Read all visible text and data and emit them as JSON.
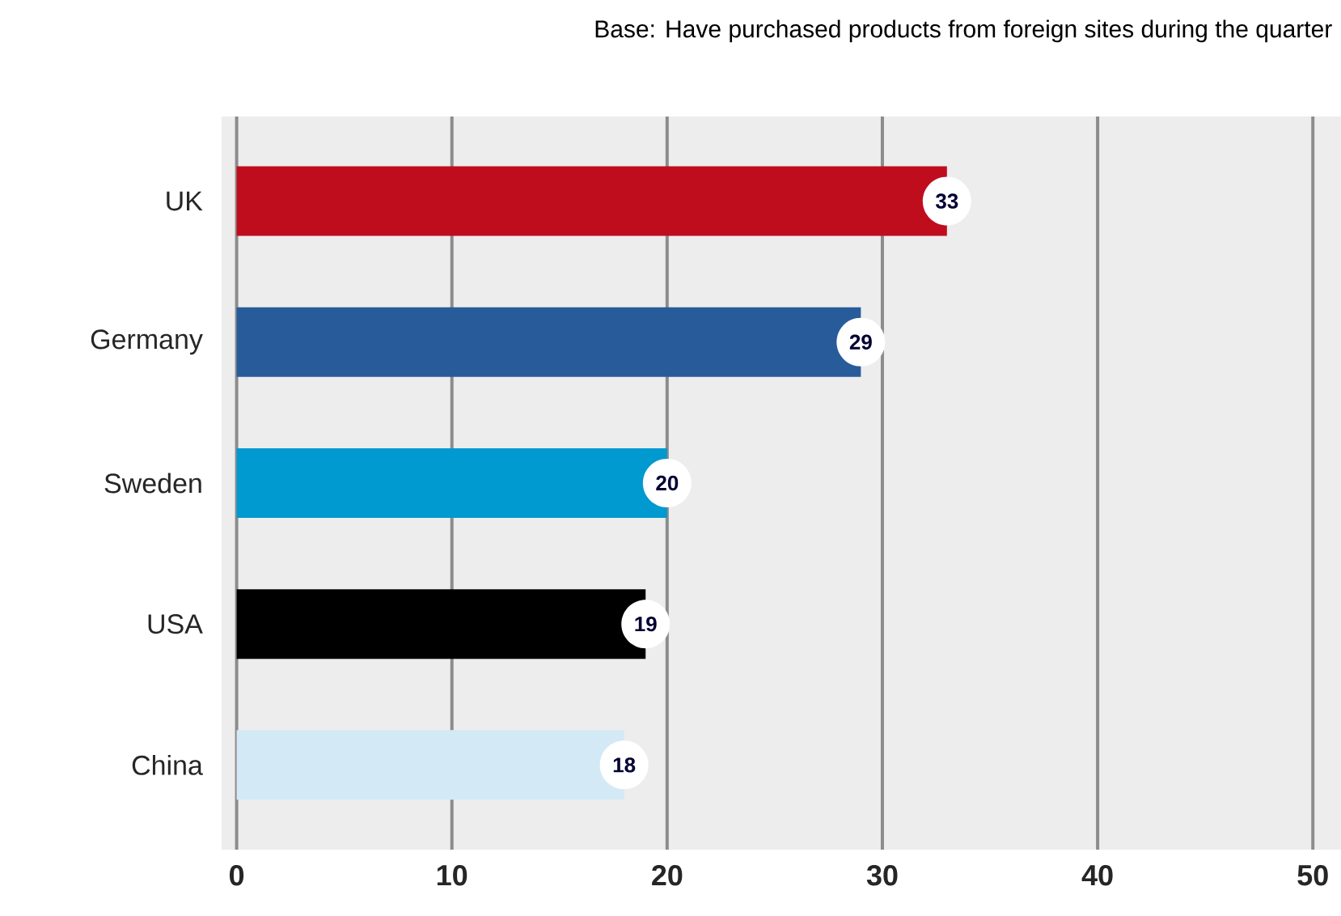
{
  "chart_data": {
    "type": "bar",
    "orientation": "horizontal",
    "subtitle": "Base: Have purchased products from foreign sites during the quarter",
    "categories": [
      "UK",
      "Germany",
      "Sweden",
      "USA",
      "China"
    ],
    "values": [
      33,
      29,
      20,
      19,
      18
    ],
    "colors": [
      "#c00d1e",
      "#285b9a",
      "#0099d0",
      "#000000",
      "#d4e9f6"
    ],
    "xlim": [
      -0.7,
      51.3
    ],
    "xticks": [
      0,
      10,
      20,
      30,
      40,
      50
    ],
    "grid": "x",
    "data_labels": true
  }
}
